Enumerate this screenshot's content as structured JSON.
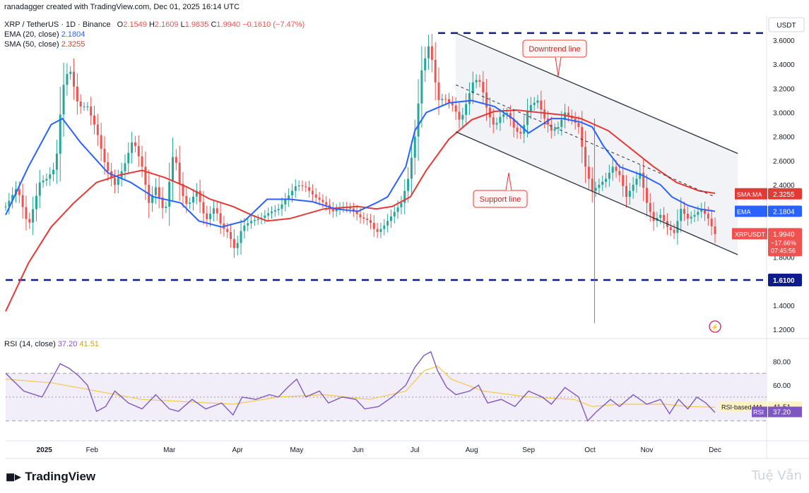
{
  "header": {
    "created": "ranadagger created with TradingView.com, Dec 01, 2025 16:14 UTC",
    "symbol_line": "XRP / TetherUS · 1D · Binance",
    "ohlc": {
      "o_label": "O",
      "o": "2.1549",
      "h_label": "H",
      "h": "2.1609",
      "l_label": "L",
      "l": "1.9835",
      "c_label": "C",
      "c": "1.9940",
      "chg": "−0.1610 (−7.47%)"
    },
    "ema_label": "EMA (20, close)",
    "ema_value": "2.1804",
    "sma_label": "SMA (50, close)",
    "sma_value": "2.3255",
    "rsi_label": "RSI (14, close)",
    "rsi_value": "37.20",
    "rsi_ma_value": "41.51"
  },
  "colors": {
    "up": "#26a69a",
    "down": "#ef5350",
    "ema": "#2962ff",
    "sma": "#e53935",
    "rsi": "#7e57c2",
    "rsi_ma": "#f2c94c",
    "level": "#0d1b8c",
    "channel": "#2b3040"
  },
  "chart_data": {
    "type": "candlestick",
    "title": "XRP / TetherUS · 1D · Binance",
    "currency": "USDT",
    "ylim": [
      1.2,
      3.7
    ],
    "y_ticks": [
      "3.6000",
      "3.4000",
      "3.2000",
      "3.0000",
      "2.8000",
      "2.6000",
      "2.4000",
      "2.2000",
      "2.0000",
      "1.8000",
      "1.6000",
      "1.4000",
      "1.2000"
    ],
    "x_ticks": [
      "2025",
      "Feb",
      "Mar",
      "Apr",
      "May",
      "Jun",
      "Jul",
      "Aug",
      "Sep",
      "Oct",
      "Nov",
      "Dec"
    ],
    "horizontal_levels": [
      {
        "value": 3.66,
        "label": ""
      },
      {
        "value": 1.61,
        "label": "1.6100"
      }
    ],
    "trendlines": [
      {
        "name": "Downtrend line",
        "from": [
          "Jul 18",
          3.66
        ],
        "to": [
          "Dec 12",
          2.66
        ]
      },
      {
        "name": "Support line",
        "from": [
          "Jul 18",
          2.84
        ],
        "to": [
          "Dec 12",
          1.82
        ]
      },
      {
        "name": "",
        "from": [
          "Jul 18",
          3.23
        ],
        "to": [
          "Dec 01",
          2.3
        ],
        "dashed": true
      }
    ],
    "annotations": [
      "Downtrend line",
      "Support line"
    ],
    "ema_path": [
      [
        0,
        2.15
      ],
      [
        10,
        2.55
      ],
      [
        20,
        2.9
      ],
      [
        25,
        2.95
      ],
      [
        33,
        2.75
      ],
      [
        45,
        2.5
      ],
      [
        55,
        2.42
      ],
      [
        65,
        2.3
      ],
      [
        77,
        2.25
      ],
      [
        85,
        2.1
      ],
      [
        95,
        2.05
      ],
      [
        105,
        2.1
      ],
      [
        115,
        2.28
      ],
      [
        125,
        2.28
      ],
      [
        135,
        2.26
      ],
      [
        145,
        2.2
      ],
      [
        155,
        2.18
      ],
      [
        163,
        2.25
      ],
      [
        168,
        2.3
      ],
      [
        176,
        2.55
      ],
      [
        180,
        2.85
      ],
      [
        185,
        3.0
      ],
      [
        195,
        3.08
      ],
      [
        205,
        3.1
      ],
      [
        215,
        3.05
      ],
      [
        223,
        2.95
      ],
      [
        230,
        2.83
      ],
      [
        240,
        2.95
      ],
      [
        245,
        2.95
      ],
      [
        253,
        2.92
      ],
      [
        258,
        2.88
      ],
      [
        263,
        2.72
      ],
      [
        270,
        2.55
      ],
      [
        280,
        2.48
      ],
      [
        288,
        2.4
      ],
      [
        293,
        2.3
      ],
      [
        300,
        2.23
      ],
      [
        305,
        2.2
      ],
      [
        312,
        2.18
      ]
    ],
    "sma_path": [
      [
        0,
        1.35
      ],
      [
        10,
        1.75
      ],
      [
        20,
        2.05
      ],
      [
        30,
        2.25
      ],
      [
        40,
        2.42
      ],
      [
        50,
        2.48
      ],
      [
        60,
        2.52
      ],
      [
        70,
        2.46
      ],
      [
        80,
        2.38
      ],
      [
        90,
        2.28
      ],
      [
        100,
        2.22
      ],
      [
        108,
        2.15
      ],
      [
        115,
        2.1
      ],
      [
        125,
        2.12
      ],
      [
        140,
        2.2
      ],
      [
        155,
        2.22
      ],
      [
        163,
        2.2
      ],
      [
        170,
        2.22
      ],
      [
        178,
        2.3
      ],
      [
        185,
        2.52
      ],
      [
        195,
        2.78
      ],
      [
        205,
        2.94
      ],
      [
        215,
        3.01
      ],
      [
        225,
        3.02
      ],
      [
        235,
        3.0
      ],
      [
        245,
        2.98
      ],
      [
        253,
        2.95
      ],
      [
        265,
        2.85
      ],
      [
        275,
        2.7
      ],
      [
        285,
        2.55
      ],
      [
        295,
        2.42
      ],
      [
        305,
        2.35
      ],
      [
        312,
        2.33
      ]
    ],
    "candles_sketch": [
      [
        0,
        2.22
      ],
      [
        5,
        2.38
      ],
      [
        10,
        2.05
      ],
      [
        15,
        2.42
      ],
      [
        18,
        2.45
      ],
      [
        22,
        2.55
      ],
      [
        25,
        3.2
      ],
      [
        28,
        3.38
      ],
      [
        32,
        3.05
      ],
      [
        36,
        3.05
      ],
      [
        40,
        2.85
      ],
      [
        44,
        2.55
      ],
      [
        48,
        2.4
      ],
      [
        52,
        2.55
      ],
      [
        56,
        2.78
      ],
      [
        60,
        2.55
      ],
      [
        63,
        2.25
      ],
      [
        66,
        2.38
      ],
      [
        70,
        2.15
      ],
      [
        74,
        2.7
      ],
      [
        77,
        2.35
      ],
      [
        80,
        2.22
      ],
      [
        84,
        2.35
      ],
      [
        88,
        2.1
      ],
      [
        92,
        2.22
      ],
      [
        95,
        2.05
      ],
      [
        98,
        2.0
      ],
      [
        101,
        1.85
      ],
      [
        104,
        2.05
      ],
      [
        108,
        2.1
      ],
      [
        112,
        2.12
      ],
      [
        116,
        2.17
      ],
      [
        120,
        2.2
      ],
      [
        124,
        2.3
      ],
      [
        128,
        2.4
      ],
      [
        132,
        2.38
      ],
      [
        136,
        2.3
      ],
      [
        140,
        2.25
      ],
      [
        144,
        2.18
      ],
      [
        148,
        2.22
      ],
      [
        152,
        2.2
      ],
      [
        156,
        2.13
      ],
      [
        160,
        2.1
      ],
      [
        163,
        2.0
      ],
      [
        166,
        2.05
      ],
      [
        170,
        2.15
      ],
      [
        174,
        2.25
      ],
      [
        177,
        2.45
      ],
      [
        180,
        2.8
      ],
      [
        183,
        3.35
      ],
      [
        186,
        3.55
      ],
      [
        188,
        3.4
      ],
      [
        190,
        3.1
      ],
      [
        193,
        3.12
      ],
      [
        197,
        3.05
      ],
      [
        200,
        2.92
      ],
      [
        203,
        3.1
      ],
      [
        206,
        3.28
      ],
      [
        209,
        3.25
      ],
      [
        212,
        3.0
      ],
      [
        215,
        2.88
      ],
      [
        218,
        2.98
      ],
      [
        221,
        3.0
      ],
      [
        224,
        2.85
      ],
      [
        227,
        2.82
      ],
      [
        230,
        3.05
      ],
      [
        234,
        3.1
      ],
      [
        237,
        2.95
      ],
      [
        240,
        2.85
      ],
      [
        243,
        2.88
      ],
      [
        246,
        3.0
      ],
      [
        249,
        2.95
      ],
      [
        252,
        2.88
      ],
      [
        255,
        2.55
      ],
      [
        258,
        2.35
      ],
      [
        261,
        2.4
      ],
      [
        264,
        2.45
      ],
      [
        267,
        2.55
      ],
      [
        270,
        2.48
      ],
      [
        273,
        2.3
      ],
      [
        276,
        2.4
      ],
      [
        279,
        2.5
      ],
      [
        282,
        2.25
      ],
      [
        285,
        2.1
      ],
      [
        288,
        2.15
      ],
      [
        291,
        2.05
      ],
      [
        294,
        2.0
      ],
      [
        297,
        2.2
      ],
      [
        300,
        2.12
      ],
      [
        303,
        2.15
      ],
      [
        306,
        2.2
      ],
      [
        309,
        2.12
      ],
      [
        312,
        1.99
      ]
    ],
    "rsi_ylim": [
      15,
      95
    ],
    "rsi_ticks": [
      "80.00",
      "60.00"
    ],
    "rsi_band": [
      70,
      30
    ],
    "rsi_sketch": [
      [
        0,
        70
      ],
      [
        8,
        55
      ],
      [
        16,
        50
      ],
      [
        24,
        78
      ],
      [
        28,
        74
      ],
      [
        32,
        68
      ],
      [
        36,
        60
      ],
      [
        40,
        38
      ],
      [
        44,
        42
      ],
      [
        48,
        55
      ],
      [
        54,
        45
      ],
      [
        60,
        40
      ],
      [
        66,
        52
      ],
      [
        72,
        40
      ],
      [
        76,
        38
      ],
      [
        82,
        48
      ],
      [
        88,
        40
      ],
      [
        95,
        45
      ],
      [
        100,
        35
      ],
      [
        104,
        50
      ],
      [
        110,
        48
      ],
      [
        116,
        52
      ],
      [
        120,
        50
      ],
      [
        124,
        58
      ],
      [
        128,
        65
      ],
      [
        132,
        50
      ],
      [
        138,
        55
      ],
      [
        142,
        45
      ],
      [
        148,
        50
      ],
      [
        154,
        48
      ],
      [
        158,
        40
      ],
      [
        164,
        42
      ],
      [
        170,
        50
      ],
      [
        176,
        60
      ],
      [
        180,
        75
      ],
      [
        184,
        85
      ],
      [
        187,
        88
      ],
      [
        190,
        72
      ],
      [
        194,
        58
      ],
      [
        198,
        52
      ],
      [
        204,
        55
      ],
      [
        208,
        60
      ],
      [
        212,
        45
      ],
      [
        218,
        48
      ],
      [
        224,
        42
      ],
      [
        230,
        55
      ],
      [
        236,
        50
      ],
      [
        240,
        44
      ],
      [
        246,
        58
      ],
      [
        252,
        50
      ],
      [
        256,
        30
      ],
      [
        260,
        38
      ],
      [
        266,
        48
      ],
      [
        270,
        42
      ],
      [
        276,
        52
      ],
      [
        282,
        44
      ],
      [
        288,
        48
      ],
      [
        292,
        36
      ],
      [
        296,
        48
      ],
      [
        300,
        40
      ],
      [
        304,
        50
      ],
      [
        308,
        45
      ],
      [
        312,
        37
      ]
    ],
    "rsi_ma_sketch": [
      [
        0,
        65
      ],
      [
        20,
        62
      ],
      [
        40,
        55
      ],
      [
        60,
        48
      ],
      [
        80,
        46
      ],
      [
        100,
        44
      ],
      [
        120,
        50
      ],
      [
        140,
        52
      ],
      [
        160,
        48
      ],
      [
        176,
        55
      ],
      [
        184,
        72
      ],
      [
        190,
        76
      ],
      [
        196,
        65
      ],
      [
        210,
        55
      ],
      [
        230,
        50
      ],
      [
        250,
        48
      ],
      [
        258,
        42
      ],
      [
        270,
        44
      ],
      [
        290,
        44
      ],
      [
        300,
        42
      ],
      [
        312,
        41.5
      ]
    ]
  },
  "price_labels": {
    "currency": "USDT",
    "sma_tag": "SMA:MA",
    "sma_value": "2.3255",
    "ema_tag": "EMA",
    "ema_value": "2.1804",
    "symbol_tag": "XRPUSDT",
    "last_value": "1.9940",
    "last_change": "−17.66%",
    "countdown": "07:45:56",
    "level_value": "1.6100",
    "rsi_ma_tag": "RSI-based MA",
    "rsi_ma_value": "41.51",
    "rsi_tag": "RSI",
    "rsi_value": "37.20"
  },
  "branding": {
    "logo_text": "TradingView",
    "watermark": "Tuệ Vẫn"
  }
}
